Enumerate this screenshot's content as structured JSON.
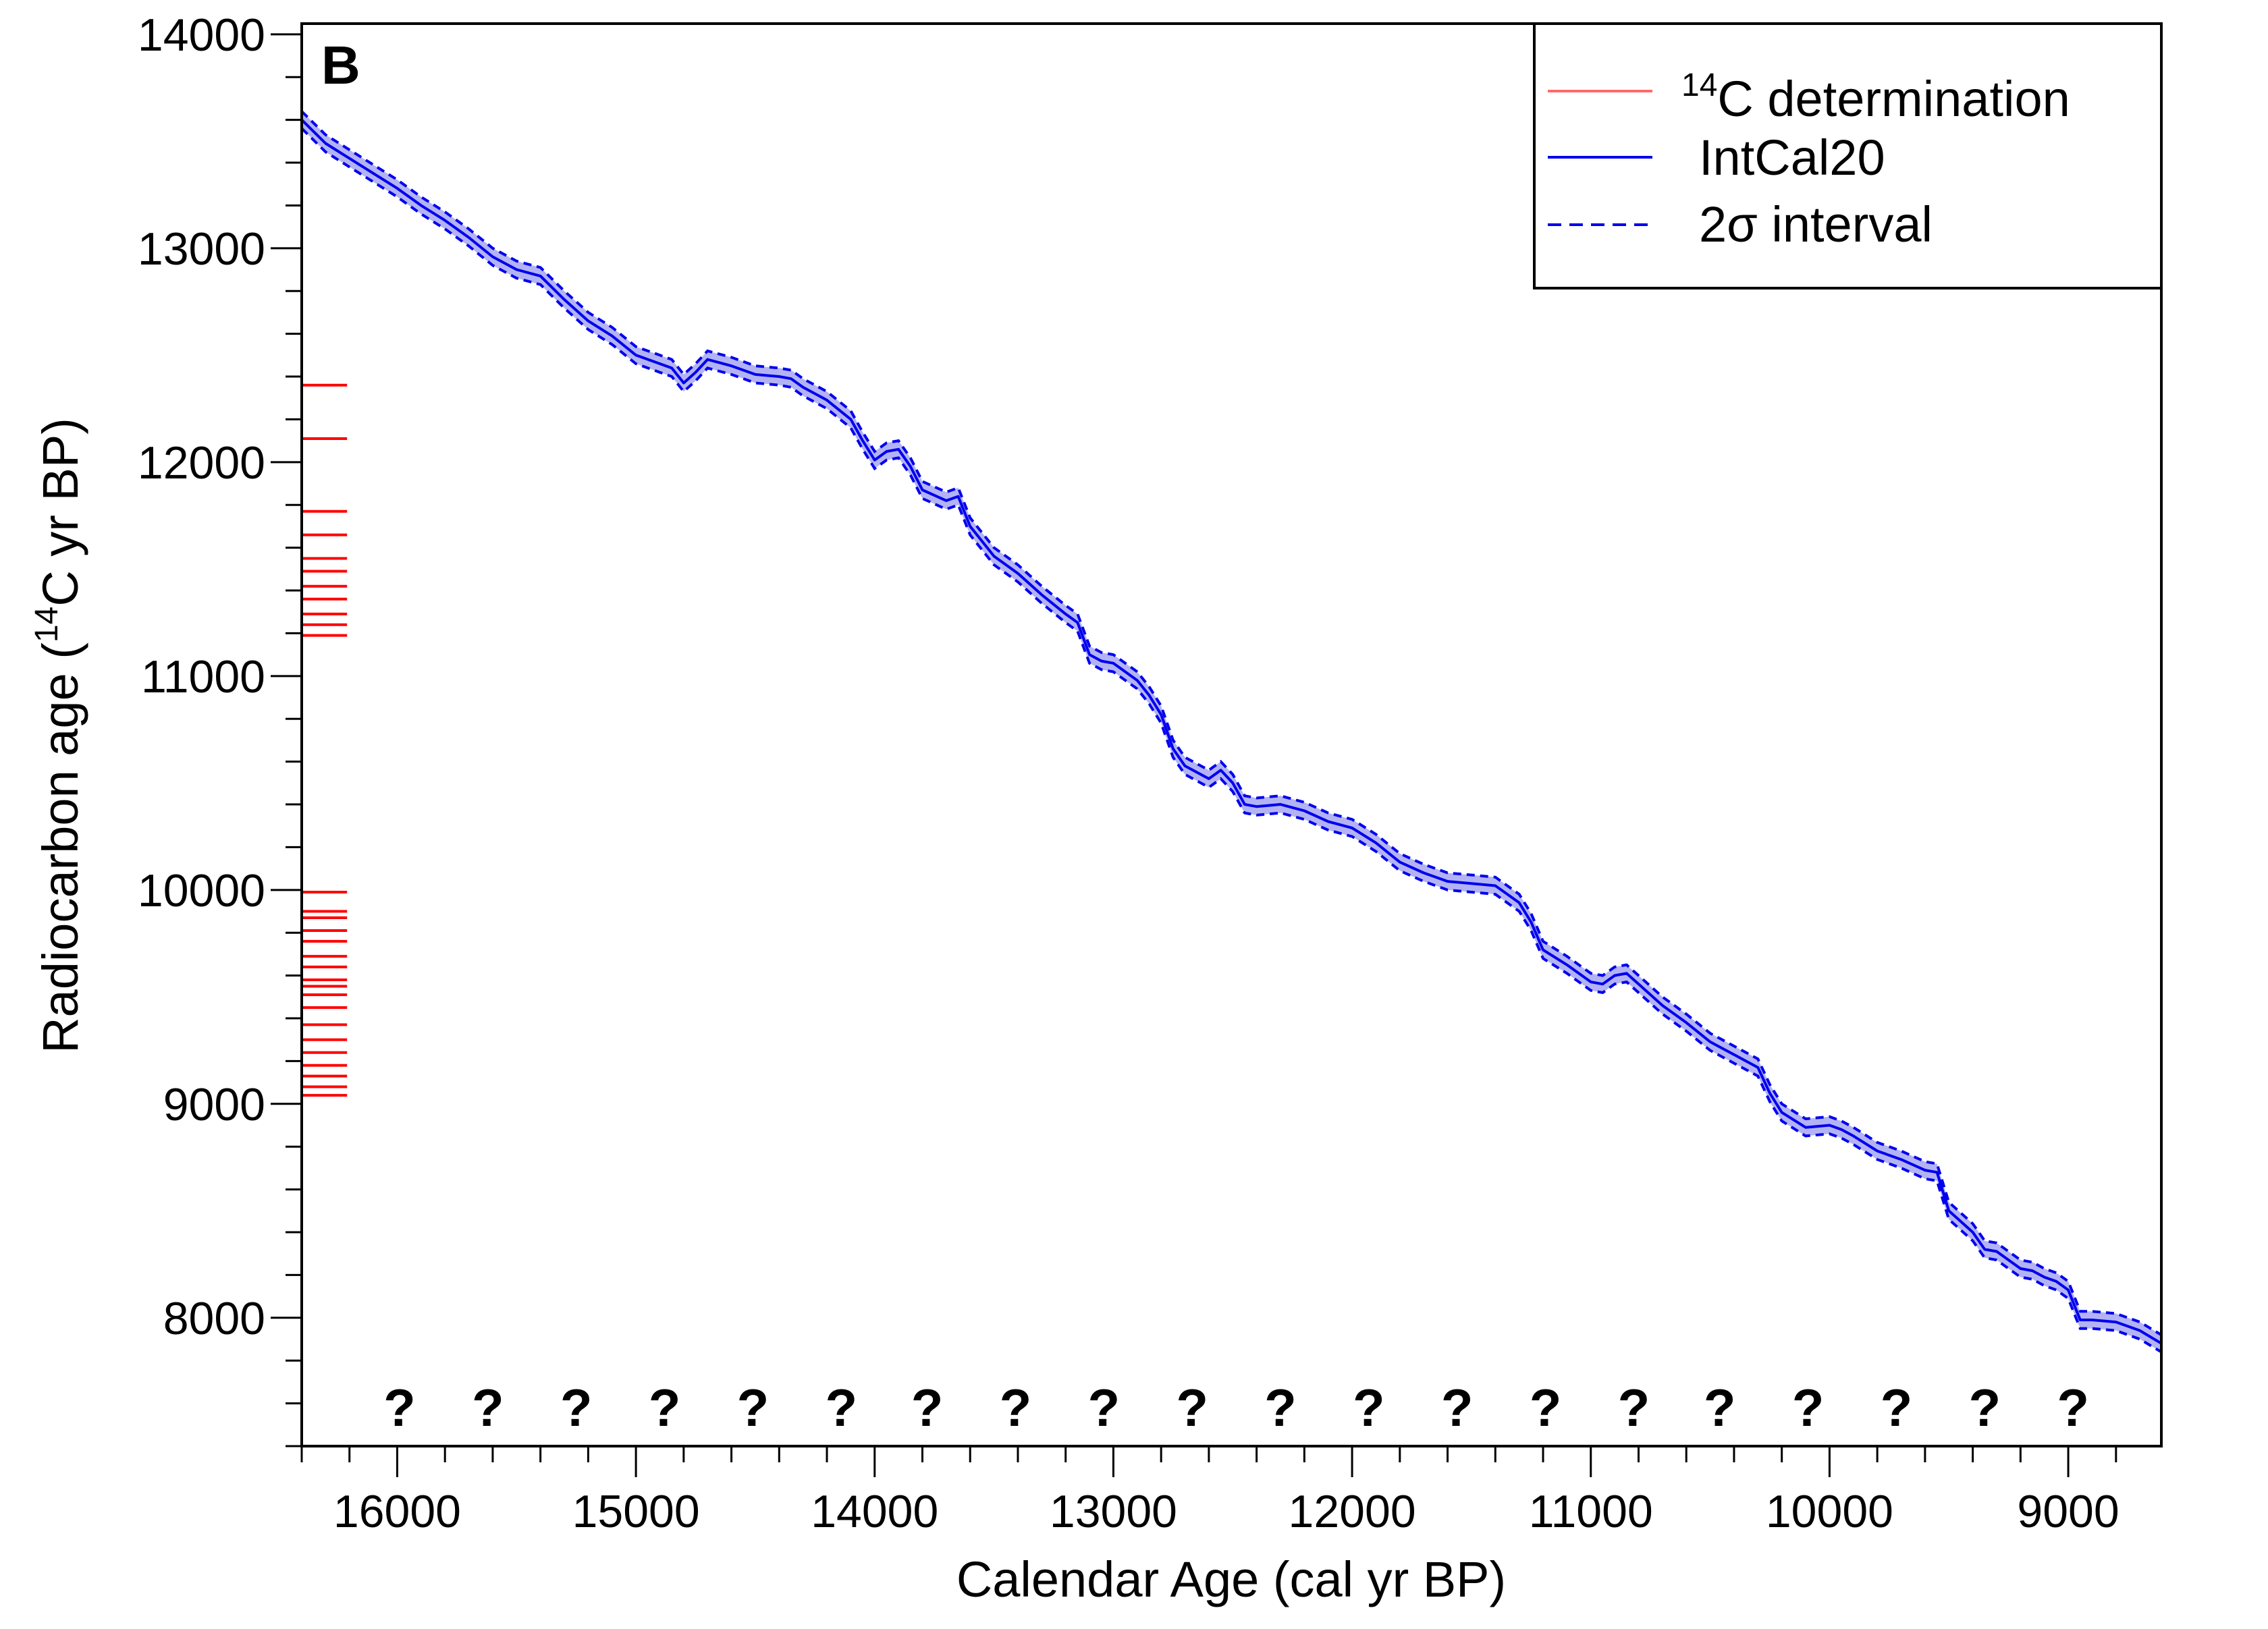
{
  "chart_data": {
    "type": "line",
    "panel_label": "B",
    "xlabel": "Calendar Age (cal yr BP)",
    "ylabel_pre": "Radiocarbon age (",
    "ylabel_sup": "14",
    "ylabel_post": "C yr BP)",
    "x_reversed": true,
    "xlim": [
      16400,
      8610
    ],
    "ylim": [
      7400,
      14050
    ],
    "x_ticks": [
      16000,
      15000,
      14000,
      13000,
      12000,
      11000,
      10000,
      9000
    ],
    "x_tick_labels": [
      "16000",
      "15000",
      "14000",
      "13000",
      "12000",
      "11000",
      "10000",
      "9000"
    ],
    "x_minor_step": 200,
    "y_ticks": [
      8000,
      9000,
      10000,
      11000,
      12000,
      13000,
      14000
    ],
    "y_tick_labels": [
      "8000",
      "9000",
      "10000",
      "11000",
      "12000",
      "13000",
      "14000"
    ],
    "y_minor_step": 200,
    "legend": {
      "position": "top-right",
      "items": [
        {
          "sup": "14",
          "label": "C determination",
          "color": "#ff6b6b",
          "style": "solid"
        },
        {
          "sup": "",
          "label": "IntCal20",
          "color": "#0000ee",
          "style": "solid"
        },
        {
          "sup": "",
          "label": "2σ interval",
          "color": "#0000ee",
          "style": "dashed"
        }
      ]
    },
    "series": [
      {
        "name": "IntCal20",
        "color": "#0000ee",
        "band_color": "#9a9af0",
        "x": [
          16400,
          16300,
          16200,
          16100,
          16000,
          15900,
          15800,
          15700,
          15600,
          15500,
          15400,
          15300,
          15200,
          15100,
          15000,
          14900,
          14850,
          14800,
          14750,
          14700,
          14600,
          14500,
          14400,
          14350,
          14300,
          14200,
          14100,
          14050,
          14000,
          13950,
          13900,
          13850,
          13800,
          13700,
          13650,
          13600,
          13500,
          13400,
          13300,
          13200,
          13150,
          13100,
          13050,
          13000,
          12900,
          12850,
          12800,
          12750,
          12700,
          12600,
          12550,
          12500,
          12450,
          12400,
          12300,
          12200,
          12100,
          12000,
          11900,
          11800,
          11700,
          11600,
          11500,
          11400,
          11300,
          11250,
          11200,
          11100,
          11000,
          10950,
          10900,
          10850,
          10800,
          10700,
          10600,
          10500,
          10400,
          10300,
          10250,
          10200,
          10100,
          10000,
          9950,
          9900,
          9800,
          9700,
          9600,
          9550,
          9500,
          9400,
          9350,
          9300,
          9200,
          9150,
          9100,
          9050,
          9000,
          8950,
          8900,
          8800,
          8700,
          8610
        ],
        "y": [
          13600,
          13490,
          13420,
          13350,
          13280,
          13200,
          13130,
          13050,
          12960,
          12900,
          12870,
          12760,
          12660,
          12590,
          12500,
          12460,
          12440,
          12370,
          12420,
          12480,
          12450,
          12410,
          12400,
          12390,
          12350,
          12290,
          12200,
          12100,
          12010,
          12050,
          12060,
          11980,
          11870,
          11820,
          11840,
          11700,
          11560,
          11480,
          11380,
          11290,
          11250,
          11100,
          11070,
          11060,
          10980,
          10910,
          10820,
          10660,
          10580,
          10520,
          10560,
          10500,
          10400,
          10390,
          10400,
          10370,
          10320,
          10290,
          10220,
          10130,
          10080,
          10040,
          10030,
          10020,
          9940,
          9850,
          9720,
          9650,
          9570,
          9560,
          9600,
          9610,
          9560,
          9460,
          9380,
          9290,
          9230,
          9170,
          9050,
          8960,
          8890,
          8900,
          8880,
          8850,
          8780,
          8740,
          8690,
          8680,
          8500,
          8400,
          8320,
          8310,
          8230,
          8220,
          8190,
          8170,
          8130,
          7990,
          7990,
          7980,
          7940,
          7880
        ],
        "sigma2": 40
      }
    ],
    "determinations": {
      "name": "14C determination",
      "color": "#ff0000",
      "x_start": 16400,
      "x_end": 16210,
      "values": [
        12360,
        12110,
        11770,
        11660,
        11550,
        11490,
        11420,
        11360,
        11290,
        11240,
        11190,
        9990,
        9900,
        9870,
        9810,
        9760,
        9690,
        9640,
        9580,
        9550,
        9510,
        9450,
        9370,
        9300,
        9240,
        9180,
        9130,
        9080,
        9040
      ]
    },
    "question_marks": {
      "text": "?",
      "y": 7580,
      "x": [
        15990,
        15620,
        15250,
        14880,
        14510,
        14140,
        13780,
        13410,
        13040,
        12670,
        12300,
        11930,
        11560,
        11190,
        10820,
        10460,
        10090,
        9720,
        9350,
        8980
      ]
    }
  }
}
